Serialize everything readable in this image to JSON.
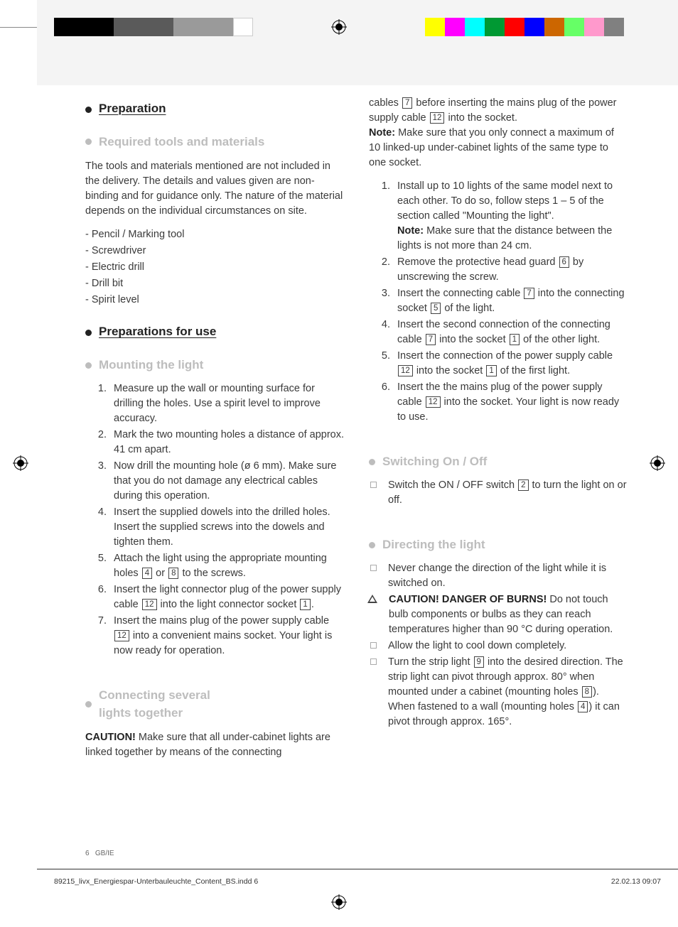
{
  "swatches_left": [
    "#000000",
    "#000000",
    "#000000",
    "#5a5a5a",
    "#5a5a5a",
    "#5a5a5a",
    "#9a9a9a",
    "#9a9a9a",
    "#9a9a9a",
    "#ffffff"
  ],
  "swatches_right": [
    "#ffff00",
    "#ff00ff",
    "#00ffff",
    "#009933",
    "#ff0000",
    "#0000ff",
    "#cc6600",
    "#66ff66",
    "#ff99cc",
    "#808080"
  ],
  "hdr": {
    "prep": "Preparation",
    "tools": "Required tools and materials",
    "prepuse": "Preparations for use",
    "mount": "Mounting the light",
    "connect1": "Connecting several",
    "connect2": "lights together",
    "switch": "Switching On / Off",
    "direct": "Directing the light"
  },
  "tools_intro": "The tools and materials mentioned are not included in the delivery. The details and values given are non-binding and for guidance only. The nature of the material depends on the individual circumstances on site.",
  "tools_list": [
    "- Pencil / Marking tool",
    "- Screwdriver",
    "- Electric drill",
    "- Drill bit",
    "- Spirit level"
  ],
  "mount_steps": {
    "s1": "Measure up the wall or mounting surface for drilling the holes. Use a spirit level to improve accuracy.",
    "s2": "Mark the two mounting holes a distance of approx. 41 cm apart.",
    "s3": "Now drill the mounting hole (ø 6 mm). Make sure that you do not damage any electrical cables during this operation.",
    "s4": "Insert the supplied dowels into the drilled holes. Insert the supplied screws into the dowels and tighten them.",
    "s5a": "Attach the light using the appropriate mounting holes ",
    "s5b": " or ",
    "s5c": " to the screws.",
    "s6a": "Insert the light connector plug of the power supply cable ",
    "s6b": " into the light connector socket ",
    "s6c": ".",
    "s7a": "Insert the mains plug of the power supply cable ",
    "s7b": " into a convenient mains socket. Your light is now ready for operation."
  },
  "caution_label": "CAUTION!",
  "connect_p1a": " Make sure that all under-cabinet lights are linked together by means of the connecting",
  "col2_p1a": "cables ",
  "col2_p1b": " before inserting the mains plug of the power supply cable ",
  "col2_p1c": " into the socket.",
  "note_label": "Note:",
  "col2_note": " Make sure that you only connect a maximum of 10 linked-up under-cabinet lights of the same type to one socket.",
  "conn_steps": {
    "s1a": "Install up to 10 lights of the same model next to each other. To do so, follow steps 1 – 5 of the section called \"Mounting the light\".",
    "s1note": " Make sure that the distance between the lights is not more than 24 cm.",
    "s2a": "Remove the protective head guard ",
    "s2b": " by unscrewing the screw.",
    "s3a": "Insert the connecting cable ",
    "s3b": " into the connecting socket ",
    "s3c": " of the light.",
    "s4a": "Insert the second connection of the connecting cable ",
    "s4b": " into the socket ",
    "s4c": " of the other light.",
    "s5a": "Insert the connection of the power supply cable ",
    "s5b": " into the socket ",
    "s5c": " of the first light.",
    "s6a": "Insert the the mains plug of the power supply cable ",
    "s6b": " into the socket. Your light is now ready to use."
  },
  "switch_item_a": "Switch the ON / OFF switch ",
  "switch_item_b": " to turn the light on or off.",
  "direct_items": {
    "d1": "Never change the direction of the light while it is switched on.",
    "d2a": "CAUTION! DANGER OF BURNS!",
    "d2b": " Do not touch bulb components or bulbs as they can reach temperatures higher than 90 °C during operation.",
    "d3": "Allow the light to cool down completely.",
    "d4a": "Turn the strip light ",
    "d4b": " into the desired direction. The strip light can pivot through approx. 80° when mounted under a cabinet (mounting holes ",
    "d4c": "). When fastened to a wall (mounting holes ",
    "d4d": ") it can pivot through approx. 165°."
  },
  "nums": {
    "n1": "1",
    "n2": "2",
    "n4": "4",
    "n5": "5",
    "n6": "6",
    "n7": "7",
    "n8": "8",
    "n9": "9",
    "n12": "12"
  },
  "footer": {
    "pagenum": "6",
    "region": "GB/IE",
    "file": "89215_livx_Energiespar-Unterbauleuchte_Content_BS.indd   6",
    "stamp": "22.02.13   09:07"
  }
}
